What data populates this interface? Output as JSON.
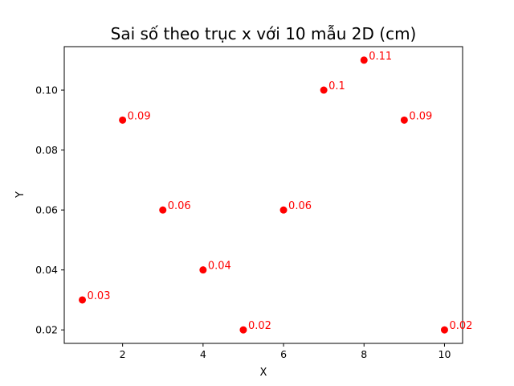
{
  "chart_data": {
    "type": "scatter",
    "title": "Sai số theo trục x với 10 mẫu 2D (cm)",
    "xlabel": "X",
    "ylabel": "Y",
    "x": [
      1,
      2,
      3,
      4,
      5,
      6,
      7,
      8,
      9,
      10
    ],
    "y": [
      0.03,
      0.09,
      0.06,
      0.04,
      0.02,
      0.06,
      0.1,
      0.11,
      0.09,
      0.02
    ],
    "point_labels": [
      "0.03",
      "0.09",
      "0.06",
      "0.04",
      "0.02",
      "0.06",
      "0.1",
      "0.11",
      "0.09",
      "0.02"
    ],
    "xlim": [
      0.55,
      10.45
    ],
    "ylim": [
      0.0155,
      0.1145
    ],
    "xticks": [
      2,
      4,
      6,
      8,
      10
    ],
    "xtick_labels": [
      "2",
      "4",
      "6",
      "8",
      "10"
    ],
    "yticks": [
      0.02,
      0.04,
      0.06,
      0.08,
      0.1
    ],
    "ytick_labels": [
      "0.02",
      "0.04",
      "0.06",
      "0.08",
      "0.10"
    ],
    "grid": false,
    "legend": "none",
    "marker_color": "#ff0000",
    "label_color": "#ff0000"
  }
}
